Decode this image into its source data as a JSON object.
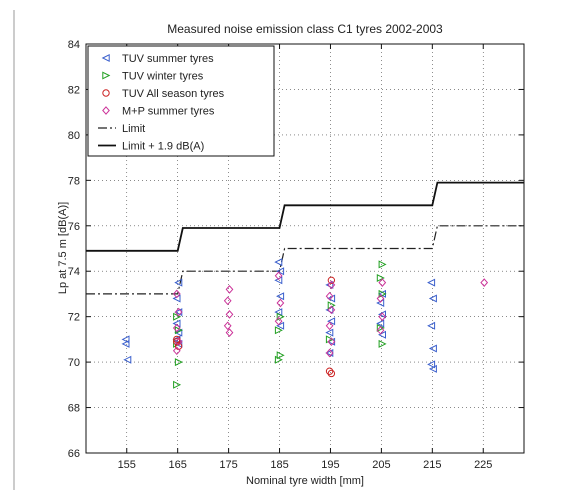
{
  "chart_data": {
    "type": "scatter",
    "title": "Measured noise emission class C1 tyres 2002-2003",
    "xlabel": "Nominal tyre width [mm]",
    "ylabel": "Lp at 7.5 m [dB(A)]",
    "xlim": [
      147,
      233
    ],
    "ylim": [
      66,
      84
    ],
    "xticks": [
      155,
      165,
      175,
      185,
      195,
      205,
      215,
      225
    ],
    "yticks": [
      66,
      68,
      70,
      72,
      74,
      76,
      78,
      80,
      82,
      84
    ],
    "grid": true,
    "legend_position": "top-left",
    "series": [
      {
        "name": "TUV summer tyres",
        "marker": "triangle-left",
        "color": "#3a5fcd",
        "points": [
          [
            155,
            70.8
          ],
          [
            155,
            70.1
          ],
          [
            155,
            71.0
          ],
          [
            165,
            73.5
          ],
          [
            165,
            72.8
          ],
          [
            165,
            72.2
          ],
          [
            165,
            71.7
          ],
          [
            165,
            71.3
          ],
          [
            165,
            71.0
          ],
          [
            165,
            70.8
          ],
          [
            185,
            74.4
          ],
          [
            185,
            74.0
          ],
          [
            185,
            73.6
          ],
          [
            185,
            72.9
          ],
          [
            185,
            72.2
          ],
          [
            185,
            71.6
          ],
          [
            195,
            73.4
          ],
          [
            195,
            72.8
          ],
          [
            195,
            72.3
          ],
          [
            195,
            71.8
          ],
          [
            195,
            71.3
          ],
          [
            195,
            70.9
          ],
          [
            195,
            70.4
          ],
          [
            205,
            73.0
          ],
          [
            205,
            72.6
          ],
          [
            205,
            72.1
          ],
          [
            205,
            71.7
          ],
          [
            205,
            71.2
          ],
          [
            215,
            73.5
          ],
          [
            215,
            72.8
          ],
          [
            215,
            71.6
          ],
          [
            215,
            70.6
          ],
          [
            215,
            69.9
          ],
          [
            215,
            69.7
          ]
        ]
      },
      {
        "name": "TUV winter tyres",
        "marker": "triangle-right",
        "color": "#22a022",
        "points": [
          [
            165,
            72.0
          ],
          [
            165,
            71.4
          ],
          [
            165,
            70.8
          ],
          [
            165,
            70.0
          ],
          [
            165,
            69.0
          ],
          [
            185,
            72.0
          ],
          [
            185,
            71.4
          ],
          [
            185,
            70.3
          ],
          [
            185,
            70.1
          ],
          [
            195,
            72.5
          ],
          [
            195,
            71.0
          ],
          [
            205,
            74.3
          ],
          [
            205,
            73.7
          ],
          [
            205,
            73.0
          ],
          [
            205,
            71.5
          ],
          [
            205,
            70.8
          ]
        ]
      },
      {
        "name": "TUV All season tyres",
        "marker": "circle",
        "color": "#cc2222",
        "points": [
          [
            165,
            71.0
          ],
          [
            165,
            70.7
          ],
          [
            165,
            70.9
          ],
          [
            195,
            73.6
          ],
          [
            195,
            69.6
          ],
          [
            195,
            69.5
          ]
        ]
      },
      {
        "name": "M+P summer tyres",
        "marker": "diamond",
        "color": "#cc3399",
        "points": [
          [
            165,
            73.0
          ],
          [
            165,
            72.2
          ],
          [
            165,
            71.5
          ],
          [
            165,
            70.9
          ],
          [
            165,
            70.5
          ],
          [
            175,
            73.2
          ],
          [
            175,
            72.7
          ],
          [
            175,
            72.1
          ],
          [
            175,
            71.6
          ],
          [
            175,
            71.3
          ],
          [
            185,
            73.8
          ],
          [
            185,
            72.6
          ],
          [
            185,
            71.8
          ],
          [
            195,
            73.4
          ],
          [
            195,
            72.9
          ],
          [
            195,
            72.3
          ],
          [
            195,
            71.6
          ],
          [
            195,
            70.9
          ],
          [
            195,
            70.4
          ],
          [
            205,
            73.5
          ],
          [
            205,
            72.8
          ],
          [
            205,
            72.0
          ],
          [
            205,
            71.4
          ],
          [
            225,
            73.5
          ]
        ]
      }
    ],
    "lines": [
      {
        "name": "Limit",
        "style": "dash-dot",
        "color": "#222222",
        "points": [
          [
            147,
            73
          ],
          [
            165,
            73
          ],
          [
            166,
            74
          ],
          [
            185,
            74
          ],
          [
            186,
            75
          ],
          [
            215,
            75
          ],
          [
            216,
            76
          ],
          [
            233,
            76
          ]
        ]
      },
      {
        "name": "Limit + 1.9 dB(A)",
        "style": "solid",
        "color": "#111111",
        "points": [
          [
            147,
            74.9
          ],
          [
            165,
            74.9
          ],
          [
            166,
            75.9
          ],
          [
            185,
            75.9
          ],
          [
            186,
            76.9
          ],
          [
            215,
            76.9
          ],
          [
            216,
            77.9
          ],
          [
            233,
            77.9
          ]
        ]
      }
    ]
  }
}
